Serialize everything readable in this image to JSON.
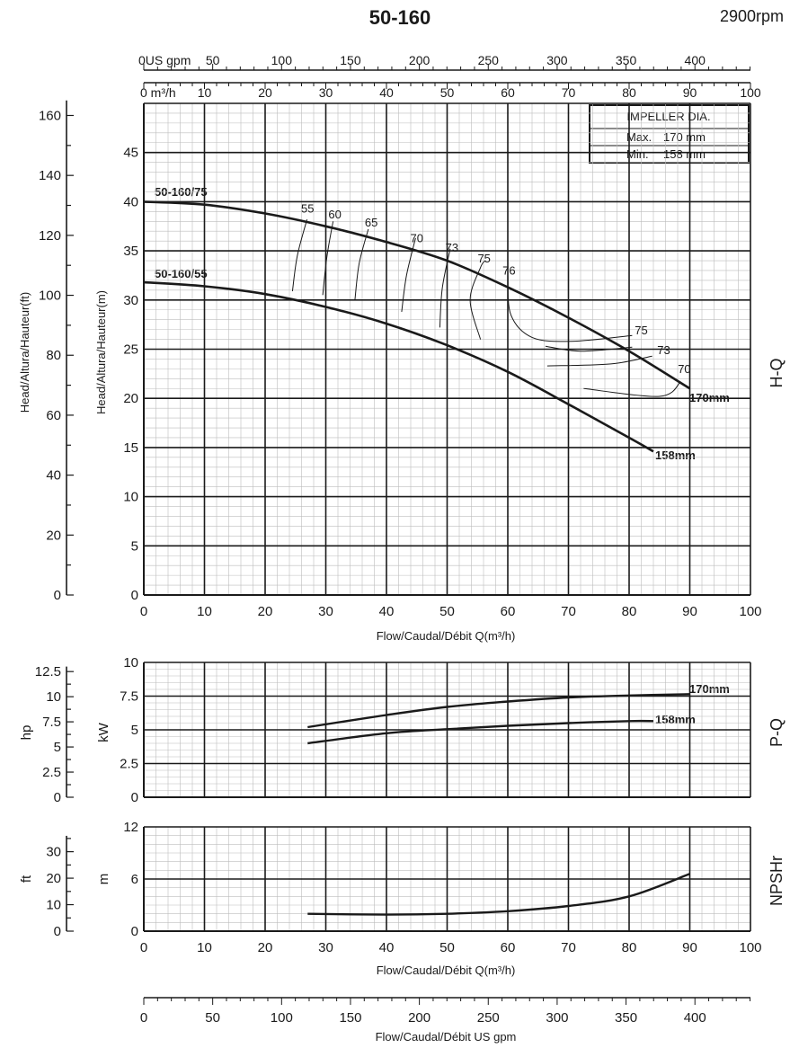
{
  "header": {
    "title": "50-160",
    "speed": "2900rpm"
  },
  "chart_data": [
    {
      "type": "line",
      "name_label": "H-Q",
      "xlabel": "Flow/Caudal/Débit Q(m³/h)",
      "ylabel_right": "Head/Altura/Hauteur(m)",
      "ylabel_left": "Head/Altura/Hauteur(ft)",
      "xlim": [
        0,
        100
      ],
      "ylim": [
        0,
        50
      ],
      "x_ticks": [
        0,
        10,
        20,
        30,
        40,
        50,
        60,
        70,
        80,
        90,
        100
      ],
      "y_ticks": [
        0,
        5,
        10,
        15,
        20,
        25,
        30,
        35,
        40,
        45
      ],
      "y_ticks_ft": [
        0,
        20,
        40,
        60,
        80,
        100,
        120,
        140,
        160
      ],
      "top_axis_m3h_label": "0 m³/h",
      "top_axis_m3h_ticks": [
        10,
        20,
        30,
        40,
        50,
        60,
        70,
        80,
        90,
        100
      ],
      "top_axis_gpm_label": "0US gpm",
      "top_axis_gpm_ticks": [
        50,
        100,
        150,
        200,
        250,
        300,
        350,
        400
      ],
      "grid": true,
      "legend": {
        "title": "IMPELLER DIA.",
        "rows": [
          {
            "label": "Max.",
            "value": "170 mm"
          },
          {
            "label": "Min.",
            "value": "158 mm"
          }
        ],
        "position": "top-right"
      },
      "series": [
        {
          "name": "170mm",
          "model": "50-160/75",
          "x": [
            0,
            10,
            20,
            30,
            40,
            50,
            60,
            70,
            80,
            90
          ],
          "y": [
            40,
            39.7,
            38.8,
            37.5,
            35.9,
            34,
            31.3,
            28.2,
            24.8,
            21
          ]
        },
        {
          "name": "158mm",
          "model": "50-160/55",
          "x": [
            0,
            10,
            20,
            30,
            40,
            50,
            60,
            70,
            80,
            84
          ],
          "y": [
            31.8,
            31.4,
            30.6,
            29.3,
            27.6,
            25.4,
            22.7,
            19.4,
            16,
            14.6
          ]
        }
      ],
      "efficiency_contours": [
        {
          "label": "55",
          "x": [
            24.5,
            25.3,
            26.9
          ],
          "y": [
            30.9,
            34.5,
            38.2
          ]
        },
        {
          "label": "60",
          "x": [
            29.5,
            30.2,
            31.2
          ],
          "y": [
            30.5,
            34.5,
            38
          ]
        },
        {
          "label": "65",
          "x": [
            34.8,
            35.5,
            37
          ],
          "y": [
            30,
            33.7,
            37.2
          ]
        },
        {
          "label": "70",
          "x": [
            42.5,
            43.3,
            44.8
          ],
          "y": [
            28.8,
            32.5,
            36.3
          ]
        },
        {
          "label": "73",
          "x": [
            48.8,
            49.2,
            50.5
          ],
          "y": [
            27.2,
            31.2,
            35.2
          ]
        },
        {
          "label": "75",
          "x": [
            55.5,
            53.8,
            55.5,
            56.3
          ],
          "y": [
            26,
            30,
            33.3,
            34
          ]
        },
        {
          "label": "76",
          "x": [
            60,
            60.5,
            64,
            70.5,
            80.5
          ],
          "y": [
            32.5,
            28.5,
            26.2,
            25.8,
            26.4
          ]
        },
        {
          "label": "75",
          "x": [
            66.2,
            72,
            80.5
          ],
          "y": [
            25.3,
            24.8,
            25.2
          ]
        },
        {
          "label": "73",
          "x": [
            66.5,
            77,
            83.8
          ],
          "y": [
            23.3,
            23.5,
            24.3
          ]
        },
        {
          "label": "70",
          "x": [
            72.5,
            85,
            88.5
          ],
          "y": [
            21,
            20.2,
            21.7
          ]
        }
      ],
      "eff_label_points": [
        {
          "label": "55",
          "x": 27,
          "y": 38.9
        },
        {
          "label": "60",
          "x": 31.5,
          "y": 38.3
        },
        {
          "label": "65",
          "x": 37.5,
          "y": 37.5
        },
        {
          "label": "70",
          "x": 45,
          "y": 35.9
        },
        {
          "label": "73",
          "x": 50.8,
          "y": 34.9
        },
        {
          "label": "75",
          "x": 56.1,
          "y": 33.8
        },
        {
          "label": "76",
          "x": 60.2,
          "y": 32.6
        },
        {
          "label": "75",
          "x": 82,
          "y": 26.5
        },
        {
          "label": "73",
          "x": 85.7,
          "y": 24.5
        },
        {
          "label": "70",
          "x": 89.1,
          "y": 22.6
        }
      ]
    },
    {
      "type": "line",
      "name_label": "P-Q",
      "ylabel_right": "kW",
      "ylabel_left": "hp",
      "xlim": [
        0,
        100
      ],
      "ylim": [
        0,
        10
      ],
      "y_ticks": [
        0,
        2.5,
        5,
        7.5,
        10
      ],
      "y_ticks_hp": [
        0,
        2.5,
        5,
        7.5,
        10,
        12.5
      ],
      "grid": true,
      "series": [
        {
          "name": "170mm",
          "x": [
            27,
            40,
            50,
            60,
            70,
            80,
            90
          ],
          "y": [
            5.2,
            6.1,
            6.7,
            7.1,
            7.4,
            7.55,
            7.65
          ]
        },
        {
          "name": "158mm",
          "x": [
            27,
            40,
            50,
            60,
            70,
            80,
            84
          ],
          "y": [
            4.0,
            4.75,
            5.05,
            5.3,
            5.5,
            5.65,
            5.65
          ]
        }
      ]
    },
    {
      "type": "line",
      "name_label": "NPSHr",
      "ylabel_right": "m",
      "ylabel_left": "ft",
      "xlabel": "Flow/Caudal/Débit Q(m³/h)",
      "xlim": [
        0,
        100
      ],
      "ylim": [
        0,
        12
      ],
      "x_ticks": [
        0,
        10,
        20,
        30,
        40,
        50,
        60,
        70,
        80,
        90,
        100
      ],
      "y_ticks": [
        0,
        6,
        12
      ],
      "y_ticks_ft": [
        0,
        10,
        20,
        30
      ],
      "grid": true,
      "series": [
        {
          "name": "NPSHr",
          "x": [
            27,
            40,
            50,
            60,
            70,
            80,
            90
          ],
          "y": [
            2.0,
            1.9,
            2.0,
            2.3,
            2.9,
            4.0,
            6.6
          ]
        }
      ]
    },
    {
      "type": "axis",
      "xlabel": "Flow/Caudal/Débit  US gpm",
      "x_ticks": [
        0,
        50,
        100,
        150,
        200,
        250,
        300,
        350,
        400
      ]
    }
  ]
}
